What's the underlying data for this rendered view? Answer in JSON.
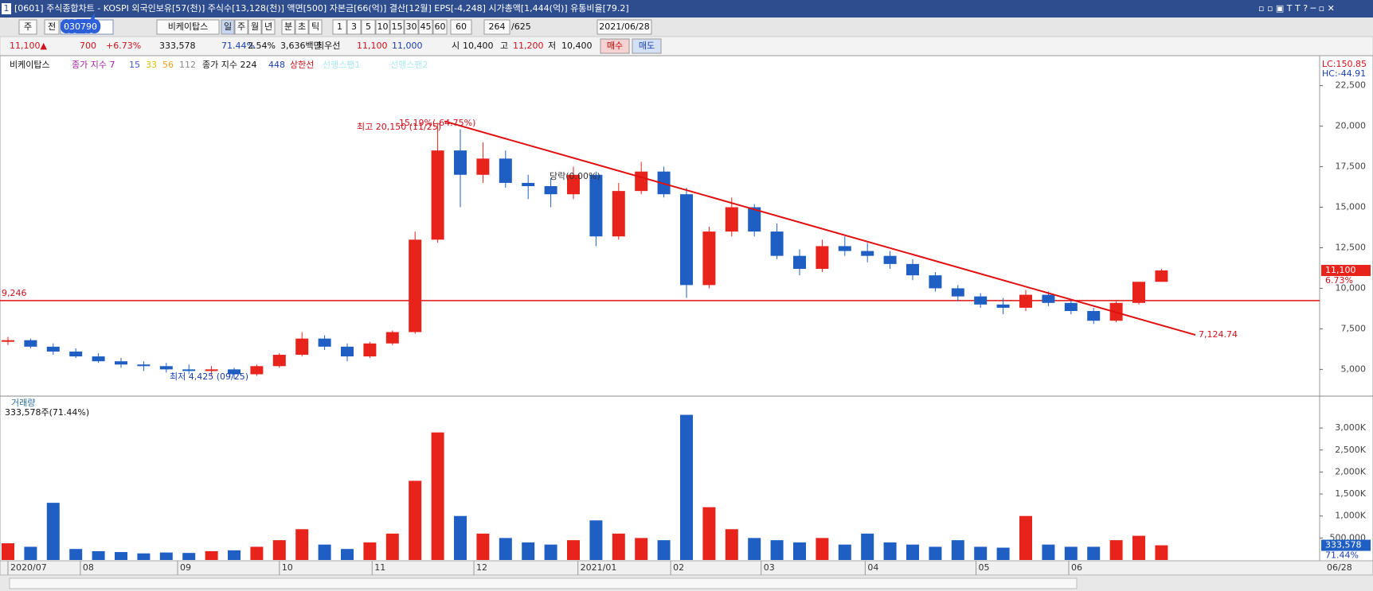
{
  "title_bar": {
    "number": "1",
    "title": "[0601] 주식종합차트 - KOSPI 외국인보유[57(천)] 주식수[13,128(천)] 액면[500] 자본금[66(억)] 결산[12월] EPS[-4,248] 시가총액[1,444(억)] 유통비율[79.2]"
  },
  "toolbar": {
    "market": "주",
    "scope": "전",
    "code": "030790",
    "name": "비케이탑스",
    "periods": [
      "일",
      "주",
      "월",
      "년",
      "분",
      "초",
      "틱"
    ],
    "intervals": [
      "1",
      "3",
      "5",
      "10",
      "15",
      "30",
      "45",
      "60"
    ],
    "interval_value": "60",
    "count": "264",
    "total": "/625",
    "date": "2021/06/28"
  },
  "quote": {
    "price": "11,100▲",
    "change": "700",
    "change_pct": "+6.73%",
    "volume": "333,578",
    "volume_pct": "71.44%",
    "turnover": "2.54%",
    "amount": "3,636백만",
    "best_label": "최우선",
    "ask": "11,100",
    "bid": "11,000",
    "open_label": "시",
    "open": "10,400",
    "high_label": "고",
    "high": "11,200",
    "low_label": "저",
    "low": "10,400",
    "buy": "매수",
    "sell": "매도"
  },
  "legend": {
    "name": "비케이탑스",
    "ma_short": "종가 지수 7",
    "ma": [
      "15",
      "33",
      "56",
      "112"
    ],
    "ma_long": "종가 지수 224",
    "ma_longer": "448",
    "upper": "상한선",
    "span1": "선행스팬1",
    "span2": "선행스팬2"
  },
  "chart_data": {
    "type": "candlestick",
    "xticks": [
      {
        "value": 0,
        "label": "2020/07"
      },
      {
        "value": 3.2,
        "label": "08"
      },
      {
        "value": 7.5,
        "label": "09"
      },
      {
        "value": 12,
        "label": "10"
      },
      {
        "value": 16.1,
        "label": "11"
      },
      {
        "value": 20.6,
        "label": "12"
      },
      {
        "value": 25.2,
        "label": "2021/01"
      },
      {
        "value": 29.3,
        "label": "02"
      },
      {
        "value": 33.3,
        "label": "03"
      },
      {
        "value": 37.9,
        "label": "04"
      },
      {
        "value": 42.8,
        "label": "05"
      },
      {
        "value": 46.9,
        "label": "06"
      }
    ],
    "last_date": "06/28",
    "ohlc": [
      [
        6700,
        7000,
        6500,
        6800
      ],
      [
        6800,
        6900,
        6300,
        6400
      ],
      [
        6400,
        6600,
        5900,
        6100
      ],
      [
        6100,
        6300,
        5700,
        5800
      ],
      [
        5800,
        6000,
        5400,
        5500
      ],
      [
        5500,
        5700,
        5100,
        5300
      ],
      [
        5300,
        5500,
        4900,
        5200
      ],
      [
        5200,
        5400,
        4800,
        5000
      ],
      [
        5000,
        5300,
        4700,
        4900
      ],
      [
        4900,
        5200,
        4600,
        5000
      ],
      [
        5000,
        5100,
        4425,
        4700
      ],
      [
        4700,
        5300,
        4600,
        5200
      ],
      [
        5200,
        6000,
        5100,
        5900
      ],
      [
        5900,
        7300,
        5800,
        6900
      ],
      [
        6900,
        7100,
        6200,
        6400
      ],
      [
        6400,
        6600,
        5500,
        5800
      ],
      [
        5800,
        6700,
        5700,
        6600
      ],
      [
        6600,
        7400,
        6500,
        7300
      ],
      [
        7300,
        13500,
        7200,
        13000
      ],
      [
        13000,
        20150,
        12800,
        18500
      ],
      [
        18500,
        19800,
        15000,
        17000
      ],
      [
        17000,
        19000,
        16500,
        18000
      ],
      [
        18000,
        18500,
        16200,
        16500
      ],
      [
        16500,
        17000,
        15500,
        16300
      ],
      [
        16300,
        16800,
        15000,
        15800
      ],
      [
        15800,
        17500,
        15500,
        17000
      ],
      [
        17000,
        17200,
        12600,
        13200
      ],
      [
        13200,
        16500,
        13000,
        16000
      ],
      [
        16000,
        17800,
        15800,
        17200
      ],
      [
        17200,
        17500,
        15600,
        15800
      ],
      [
        15800,
        16200,
        9400,
        10200
      ],
      [
        10200,
        13800,
        10000,
        13500
      ],
      [
        13500,
        15600,
        13200,
        15000
      ],
      [
        15000,
        15200,
        13200,
        13500
      ],
      [
        13500,
        14000,
        11800,
        12000
      ],
      [
        12000,
        12400,
        10800,
        11200
      ],
      [
        11200,
        13000,
        11000,
        12600
      ],
      [
        12600,
        13200,
        12000,
        12300
      ],
      [
        12300,
        12800,
        11600,
        12000
      ],
      [
        12000,
        12300,
        11200,
        11500
      ],
      [
        11500,
        11800,
        10500,
        10800
      ],
      [
        10800,
        11000,
        9800,
        10000
      ],
      [
        10000,
        10200,
        9200,
        9500
      ],
      [
        9500,
        9700,
        8800,
        9000
      ],
      [
        9000,
        9400,
        8400,
        8800
      ],
      [
        8800,
        9900,
        8600,
        9600
      ],
      [
        9600,
        9800,
        8900,
        9100
      ],
      [
        9100,
        9300,
        8400,
        8600
      ],
      [
        8600,
        8800,
        7800,
        8000
      ],
      [
        8000,
        9200,
        7900,
        9100
      ],
      [
        9100,
        10400,
        9000,
        10400
      ],
      [
        10400,
        11200,
        10400,
        11100
      ]
    ],
    "ylim": [
      3400,
      24100
    ],
    "yticks": [
      {
        "value": 5000,
        "label": "5,000"
      },
      {
        "value": 7500,
        "label": "7,500"
      },
      {
        "value": 10000,
        "label": "10,000"
      },
      {
        "value": 12500,
        "label": "12,500"
      },
      {
        "value": 15000,
        "label": "15,000"
      },
      {
        "value": 17500,
        "label": "17,500"
      },
      {
        "value": 20000,
        "label": "20,000"
      },
      {
        "value": 22500,
        "label": "22,500"
      }
    ],
    "up_color": "#e8231c",
    "down_color": "#1f5fc4",
    "price_label": "11,100",
    "change_label": "6.73%",
    "lc": "LC:150.85",
    "hc": "HC:-44.91",
    "hline": {
      "value": 9246,
      "label": "9,246"
    },
    "trendline": {
      "start_index": 19.3,
      "start": 20300,
      "end_index": 52.5,
      "end": 7124.74,
      "end_label": "7,124.74"
    },
    "annotations": {
      "high": "최고 20,150 (11/25)",
      "high_pct": "-15.19%(-64.75%)",
      "low": "최저 4,425 (09/25)",
      "drop": "당락(0.00%)"
    },
    "volume_title": "거래량",
    "volume_info": "333,578주(71.44%)",
    "volume": [
      380,
      300,
      1300,
      250,
      200,
      180,
      150,
      170,
      160,
      200,
      220,
      300,
      450,
      700,
      350,
      250,
      400,
      600,
      1800,
      2900,
      1000,
      600,
      500,
      400,
      350,
      450,
      900,
      600,
      500,
      450,
      3300,
      1200,
      700,
      500,
      450,
      400,
      500,
      350,
      600,
      400,
      350,
      300,
      450,
      300,
      280,
      1000,
      350,
      300,
      300,
      450,
      550,
      333.578
    ],
    "volume_ylim": [
      0,
      3400
    ],
    "volume_ticks": [
      {
        "value": 500,
        "label": "500,000"
      },
      {
        "value": 1000,
        "label": "1,000K"
      },
      {
        "value": 1500,
        "label": "1,500K"
      },
      {
        "value": 2000,
        "label": "2,000K"
      },
      {
        "value": 2500,
        "label": "2,500K"
      },
      {
        "value": 3000,
        "label": "3,000K"
      }
    ],
    "volume_last_label": "333,578",
    "volume_last_pct": "71.44%"
  }
}
